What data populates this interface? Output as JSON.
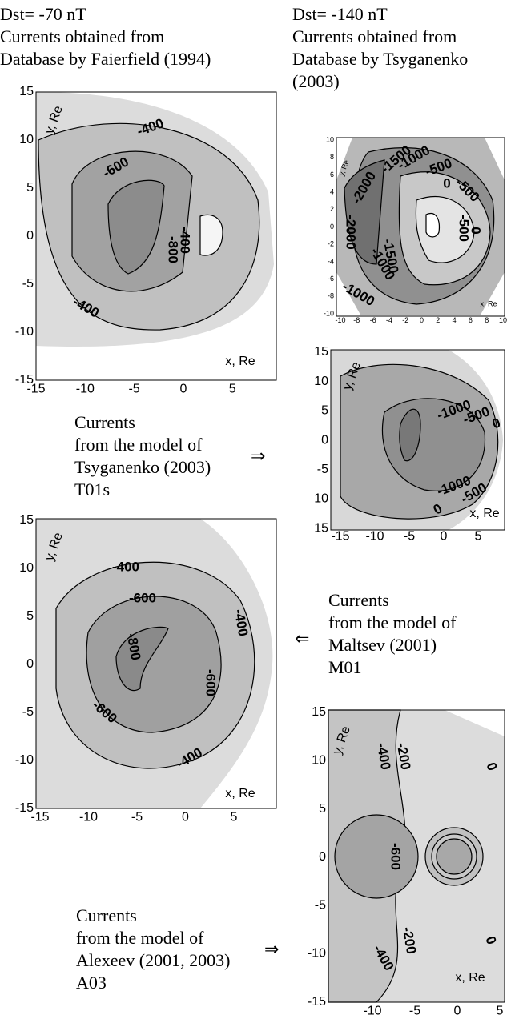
{
  "headers": [
    {
      "lines": [
        "Dst= -70 nT",
        "Currents obtained from",
        "Database by Faierfield (1994)"
      ]
    },
    {
      "lines": [
        "Dst= -140 nT",
        "Currents obtained from",
        "Database by Tsyganenko",
        "(2003)"
      ]
    }
  ],
  "captions": [
    {
      "lines": [
        "Currents",
        "from the model of",
        "Tsyganenko (2003)",
        "T01s"
      ],
      "arrow": "⇒"
    },
    {
      "lines": [
        "Currents",
        "from the model of",
        "Maltsev (2001)",
        "M01"
      ],
      "arrow": "⇐"
    },
    {
      "lines": [
        "Currents",
        "from the model of",
        "Alexeev (2001, 2003)",
        "A03"
      ],
      "arrow": "⇒"
    }
  ],
  "panels": [
    {
      "xticks": [
        -15,
        -10,
        -5,
        0,
        5
      ],
      "yticks": [
        15,
        10,
        5,
        0,
        -5,
        -10,
        -15
      ],
      "xlabel": "x, Re",
      "ylabel": "y, Re",
      "contour_labels": [
        "-400",
        "-600",
        "-800",
        "-400",
        "-400"
      ]
    },
    {
      "xticks": [
        -10,
        -8,
        -6,
        -4,
        -2,
        0,
        2,
        4,
        6,
        8,
        10
      ],
      "yticks": [
        10,
        8,
        6,
        4,
        2,
        0,
        -2,
        -4,
        -6,
        -8,
        -10
      ],
      "xlabel": "x, Re",
      "ylabel": "y, Re",
      "contour_labels": [
        "-2000",
        "-1500",
        "-1000",
        "-500",
        "0",
        "-500",
        "-2000",
        "-1000",
        "-1500",
        "-1000",
        "-500",
        "0"
      ]
    },
    {
      "xticks": [
        -15,
        -10,
        -5,
        0,
        5
      ],
      "yticks": [
        "15",
        "10",
        "5",
        "0",
        "-5",
        "10",
        "15"
      ],
      "xlabel": "x, Re",
      "ylabel": "y, Re",
      "contour_labels": [
        "-1000",
        "-500",
        "0",
        "-1000",
        "-500",
        "0"
      ]
    },
    {
      "xticks": [
        -15,
        -10,
        -5,
        0,
        5
      ],
      "yticks": [
        15,
        10,
        5,
        0,
        -5,
        -10,
        -15
      ],
      "xlabel": "x, Re",
      "ylabel": "y, Re",
      "contour_labels": [
        "-400",
        "-600",
        "-800",
        "-400",
        "-600",
        "-600",
        "-400"
      ]
    },
    {
      "xticks": [
        -10,
        -5,
        0,
        5
      ],
      "yticks": [
        15,
        10,
        5,
        0,
        -5,
        -10,
        -15
      ],
      "xlabel": "x, Re",
      "ylabel": "y, Re",
      "contour_labels": [
        "-400",
        "-200",
        "0",
        "-600",
        "-200",
        "0",
        "-400"
      ]
    }
  ]
}
